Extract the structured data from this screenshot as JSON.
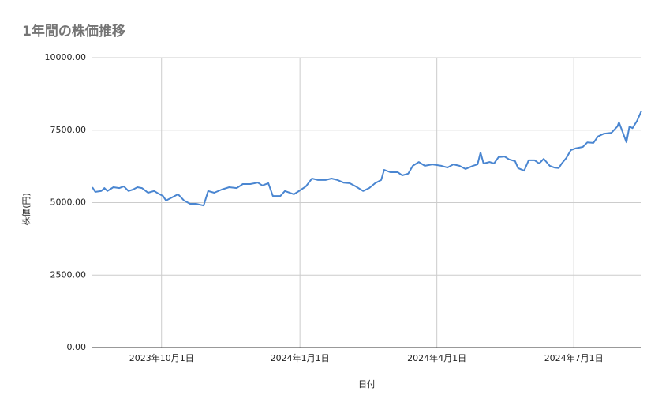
{
  "chart_data": {
    "type": "line",
    "title": "1年間の株価推移",
    "x_label": "日付",
    "y_label": "株価(円)",
    "x": [
      "2023-08-16",
      "2023-08-18",
      "2023-08-22",
      "2023-08-24",
      "2023-08-26",
      "2023-08-30",
      "2023-09-03",
      "2023-09-06",
      "2023-09-09",
      "2023-09-12",
      "2023-09-15",
      "2023-09-18",
      "2023-09-22",
      "2023-09-26",
      "2023-09-29",
      "2023-10-02",
      "2023-10-04",
      "2023-10-08",
      "2023-10-12",
      "2023-10-16",
      "2023-10-20",
      "2023-10-24",
      "2023-10-29",
      "2023-11-01",
      "2023-11-05",
      "2023-11-10",
      "2023-11-15",
      "2023-11-20",
      "2023-11-24",
      "2023-11-29",
      "2023-12-04",
      "2023-12-07",
      "2023-12-11",
      "2023-12-14",
      "2023-12-19",
      "2023-12-22",
      "2023-12-28",
      "2024-01-01",
      "2024-01-05",
      "2024-01-09",
      "2024-01-13",
      "2024-01-18",
      "2024-01-22",
      "2024-01-26",
      "2024-01-30",
      "2024-02-03",
      "2024-02-07",
      "2024-02-12",
      "2024-02-16",
      "2024-02-20",
      "2024-02-24",
      "2024-02-26",
      "2024-03-01",
      "2024-03-06",
      "2024-03-09",
      "2024-03-13",
      "2024-03-16",
      "2024-03-20",
      "2024-03-24",
      "2024-03-29",
      "2024-04-04",
      "2024-04-08",
      "2024-04-12",
      "2024-04-16",
      "2024-04-20",
      "2024-04-25",
      "2024-04-28",
      "2024-04-30",
      "2024-05-02",
      "2024-05-06",
      "2024-05-09",
      "2024-05-12",
      "2024-05-16",
      "2024-05-19",
      "2024-05-23",
      "2024-05-25",
      "2024-05-29",
      "2024-06-01",
      "2024-06-05",
      "2024-06-08",
      "2024-06-11",
      "2024-06-15",
      "2024-06-18",
      "2024-06-21",
      "2024-06-23",
      "2024-06-26",
      "2024-06-29",
      "2024-07-02",
      "2024-07-07",
      "2024-07-10",
      "2024-07-14",
      "2024-07-17",
      "2024-07-21",
      "2024-07-26",
      "2024-07-30",
      "2024-07-31",
      "2024-08-03",
      "2024-08-05",
      "2024-08-07",
      "2024-08-09",
      "2024-08-12",
      "2024-08-15"
    ],
    "series": [
      {
        "color": "#4a86d1",
        "values": [
          5530,
          5370,
          5400,
          5500,
          5400,
          5530,
          5500,
          5560,
          5400,
          5450,
          5530,
          5500,
          5340,
          5400,
          5310,
          5230,
          5070,
          5180,
          5290,
          5070,
          4960,
          4960,
          4900,
          5400,
          5340,
          5450,
          5530,
          5500,
          5640,
          5640,
          5690,
          5590,
          5670,
          5230,
          5230,
          5400,
          5290,
          5420,
          5560,
          5830,
          5780,
          5780,
          5830,
          5780,
          5690,
          5670,
          5560,
          5400,
          5500,
          5670,
          5780,
          6130,
          6050,
          6050,
          5940,
          6000,
          6270,
          6400,
          6270,
          6320,
          6270,
          6210,
          6320,
          6270,
          6160,
          6270,
          6320,
          6730,
          6350,
          6400,
          6350,
          6570,
          6590,
          6490,
          6430,
          6190,
          6100,
          6460,
          6460,
          6350,
          6510,
          6270,
          6210,
          6190,
          6350,
          6540,
          6810,
          6870,
          6920,
          7080,
          7060,
          7280,
          7380,
          7410,
          7630,
          7770,
          7360,
          7080,
          7630,
          7570,
          7820,
          8170
        ]
      }
    ],
    "xlim": [
      "2023-08-16",
      "2024-08-15"
    ],
    "xticks": [
      {
        "value": "2023-10-01",
        "label": "2023年10月1日"
      },
      {
        "value": "2024-01-01",
        "label": "2024年1月1日"
      },
      {
        "value": "2024-04-01",
        "label": "2024年4月1日"
      },
      {
        "value": "2024-07-01",
        "label": "2024年7月1日"
      }
    ],
    "ylim": [
      0,
      10000
    ],
    "yticks": [
      {
        "value": 0,
        "label": "0.00"
      },
      {
        "value": 2500,
        "label": "2500.00"
      },
      {
        "value": 5000,
        "label": "5000.00"
      },
      {
        "value": 7500,
        "label": "7500.00"
      },
      {
        "value": 10000,
        "label": "10000.00"
      }
    ],
    "grid": true
  }
}
